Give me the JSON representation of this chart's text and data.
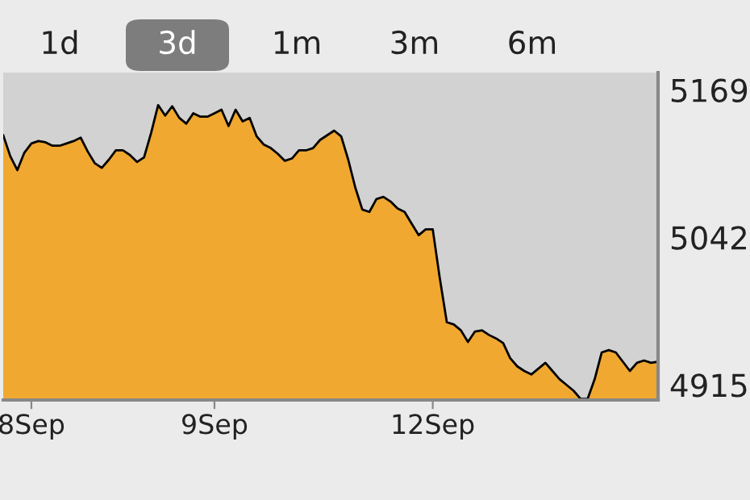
{
  "chart_data": {
    "type": "area",
    "annotations": [
      "1d",
      "3d",
      "1m",
      "3m",
      "6m"
    ],
    "categories": [
      null,
      null,
      null,
      null,
      "8Sep",
      null,
      null,
      null,
      null,
      null,
      null,
      null,
      null,
      null,
      null,
      null,
      null,
      null,
      null,
      null,
      null,
      null,
      null,
      null,
      null,
      null,
      null,
      null,
      null,
      null,
      "9Sep",
      null,
      null,
      null,
      null,
      null,
      null,
      null,
      null,
      null,
      null,
      null,
      null,
      null,
      null,
      null,
      null,
      null,
      null,
      null,
      null,
      null,
      null,
      null,
      null,
      null,
      null,
      null,
      null,
      null,
      null,
      "12Sep",
      null,
      null,
      null,
      null,
      null,
      null,
      null,
      null,
      null,
      null,
      null,
      null,
      null,
      null,
      null,
      null,
      null,
      null,
      null,
      null,
      null,
      null,
      null,
      null,
      null,
      null,
      null,
      null,
      null,
      null,
      null,
      null
    ],
    "series": [
      {
        "color": "#f0a830",
        "values": [
          5130,
          5112,
          5100,
          5115,
          5123,
          5125,
          5124,
          5121,
          5121,
          5123,
          5125,
          5128,
          5116,
          5106,
          5102,
          5109,
          5117,
          5117,
          5113,
          5107,
          5111,
          5132,
          5156,
          5147,
          5155,
          5145,
          5140,
          5149,
          5146,
          5146,
          5149,
          5152,
          5138,
          5152,
          5142,
          5145,
          5129,
          5122,
          5119,
          5114,
          5108,
          5110,
          5117,
          5117,
          5119,
          5126,
          5130,
          5134,
          5129,
          5109,
          5085,
          5066,
          5064,
          5075,
          5077,
          5073,
          5067,
          5064,
          5054,
          5044,
          5049,
          5049,
          5007,
          4969,
          4967,
          4962,
          4952,
          4961,
          4962,
          4958,
          4955,
          4951,
          4938,
          4931,
          4927,
          4924,
          4929,
          4934,
          4927,
          4920,
          4915,
          4910,
          4903,
          4903,
          4920,
          4943,
          4945,
          4943,
          4935,
          4927,
          4934,
          4936,
          4934,
          4935
        ]
      }
    ],
    "ylim": [
      4902,
      5184
    ],
    "yticks": [
      4915,
      5042,
      5169
    ],
    "grid": false,
    "legend": false
  }
}
